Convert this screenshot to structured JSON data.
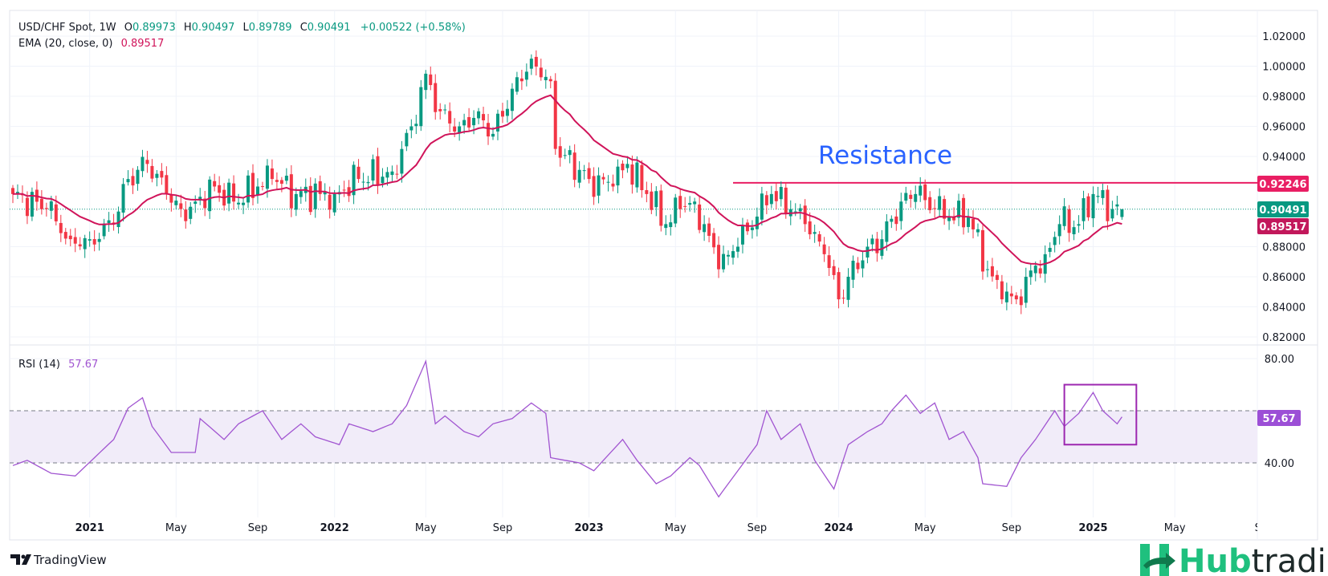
{
  "legend": {
    "symbol": "USD/CHF Spot, 1W",
    "o_label": "O",
    "o": "0.89973",
    "h_label": "H",
    "h": "0.90497",
    "l_label": "L",
    "l": "0.89789",
    "c_label": "C",
    "c": "0.90491",
    "change": "+0.00522 (+0.58%)",
    "ema_label": "EMA (20, close, 0)",
    "ema_value": "0.89517",
    "rsi_label": "RSI (14)",
    "rsi_value": "57.67"
  },
  "annotation": {
    "resistance_text": "Resistance"
  },
  "price_tags": {
    "resistance": "0.92246",
    "last": "0.90491",
    "ema": "0.89517",
    "rsi": "57.67"
  },
  "branding": {
    "tradingview": "TradingView",
    "hub": "Hub",
    "trading": "trading"
  },
  "colors": {
    "up": "#089981",
    "down": "#f23645",
    "ema": "#d0145a",
    "resistance": "#e91e63",
    "rsi": "#a155d1",
    "annotation": "#2962ff",
    "brand": "#1fc07e"
  },
  "chart_data": [
    {
      "type": "candlestick",
      "title": "USD/CHF Spot, 1W",
      "ylim": [
        0.82,
        1.02
      ],
      "y_ticks": [
        "1.02000",
        "1.00000",
        "0.98000",
        "0.96000",
        "0.94000",
        "0.88000",
        "0.86000",
        "0.84000",
        "0.82000"
      ],
      "x_ticks": [
        {
          "label": "2021",
          "week": 16,
          "bold": true
        },
        {
          "label": "May",
          "week": 34
        },
        {
          "label": "Sep",
          "week": 51
        },
        {
          "label": "2022",
          "week": 67,
          "bold": true
        },
        {
          "label": "May",
          "week": 86
        },
        {
          "label": "Sep",
          "week": 102
        },
        {
          "label": "2023",
          "week": 120,
          "bold": true
        },
        {
          "label": "May",
          "week": 138
        },
        {
          "label": "Sep",
          "week": 155
        },
        {
          "label": "2024",
          "week": 172,
          "bold": true
        },
        {
          "label": "May",
          "week": 190
        },
        {
          "label": "Sep",
          "week": 208
        },
        {
          "label": "2025",
          "week": 225,
          "bold": true
        },
        {
          "label": "May",
          "week": 242
        },
        {
          "label": "Se",
          "week": 260
        }
      ],
      "weeks": 232,
      "close_keypoints": [
        [
          0,
          0.915
        ],
        [
          7,
          0.905
        ],
        [
          12,
          0.885
        ],
        [
          16,
          0.885
        ],
        [
          21,
          0.895
        ],
        [
          24,
          0.925
        ],
        [
          28,
          0.935
        ],
        [
          32,
          0.915
        ],
        [
          36,
          0.897
        ],
        [
          38,
          0.91
        ],
        [
          42,
          0.92
        ],
        [
          46,
          0.91
        ],
        [
          51,
          0.92
        ],
        [
          54,
          0.925
        ],
        [
          59,
          0.915
        ],
        [
          64,
          0.915
        ],
        [
          67,
          0.915
        ],
        [
          72,
          0.925
        ],
        [
          79,
          0.93
        ],
        [
          83,
          0.96
        ],
        [
          86,
          0.995
        ],
        [
          89,
          0.97
        ],
        [
          93,
          0.96
        ],
        [
          97,
          0.97
        ],
        [
          100,
          0.955
        ],
        [
          104,
          0.985
        ],
        [
          108,
          1.005
        ],
        [
          112,
          0.99
        ],
        [
          113,
          0.945
        ],
        [
          120,
          0.925
        ],
        [
          125,
          0.92
        ],
        [
          128,
          0.935
        ],
        [
          132,
          0.915
        ],
        [
          136,
          0.895
        ],
        [
          139,
          0.905
        ],
        [
          142,
          0.91
        ],
        [
          144,
          0.895
        ],
        [
          147,
          0.865
        ],
        [
          151,
          0.88
        ],
        [
          155,
          0.9
        ],
        [
          158,
          0.915
        ],
        [
          162,
          0.905
        ],
        [
          165,
          0.895
        ],
        [
          169,
          0.875
        ],
        [
          172,
          0.845
        ],
        [
          174,
          0.86
        ],
        [
          178,
          0.88
        ],
        [
          181,
          0.885
        ],
        [
          185,
          0.91
        ],
        [
          188,
          0.915
        ],
        [
          192,
          0.905
        ],
        [
          195,
          0.9
        ],
        [
          199,
          0.9
        ],
        [
          203,
          0.865
        ],
        [
          206,
          0.845
        ],
        [
          209,
          0.845
        ],
        [
          211,
          0.86
        ],
        [
          215,
          0.875
        ],
        [
          218,
          0.895
        ],
        [
          222,
          0.895
        ],
        [
          225,
          0.915
        ],
        [
          229,
          0.905
        ],
        [
          231,
          0.90491
        ]
      ],
      "last_candle": {
        "open": 0.89973,
        "high": 0.90497,
        "low": 0.89789,
        "close": 0.90491
      },
      "ema_period": 20,
      "ema_last": 0.89517,
      "resistance": {
        "value": 0.92246,
        "from_week": 150,
        "label": "Resistance"
      },
      "last_price": 0.90491
    },
    {
      "type": "line",
      "title": "RSI (14)",
      "ylim": [
        20,
        85
      ],
      "y_ticks": [
        "80.00",
        "40.00"
      ],
      "bands": [
        40,
        60
      ],
      "keypoints": [
        [
          0,
          39
        ],
        [
          3,
          41
        ],
        [
          8,
          36
        ],
        [
          13,
          35
        ],
        [
          17,
          42
        ],
        [
          21,
          49
        ],
        [
          24,
          61
        ],
        [
          27,
          65
        ],
        [
          29,
          54
        ],
        [
          33,
          44
        ],
        [
          38,
          44
        ],
        [
          39,
          57
        ],
        [
          44,
          49
        ],
        [
          47,
          55
        ],
        [
          52,
          60
        ],
        [
          56,
          49
        ],
        [
          60,
          55
        ],
        [
          63,
          50
        ],
        [
          68,
          47
        ],
        [
          70,
          55
        ],
        [
          75,
          52
        ],
        [
          79,
          55
        ],
        [
          82,
          62
        ],
        [
          86,
          79
        ],
        [
          88,
          55
        ],
        [
          90,
          58
        ],
        [
          94,
          52
        ],
        [
          97,
          50
        ],
        [
          100,
          55
        ],
        [
          104,
          57
        ],
        [
          108,
          63
        ],
        [
          111,
          59
        ],
        [
          112,
          42
        ],
        [
          118,
          40
        ],
        [
          121,
          37
        ],
        [
          127,
          49
        ],
        [
          130,
          41
        ],
        [
          134,
          32
        ],
        [
          137,
          35
        ],
        [
          141,
          42
        ],
        [
          143,
          39
        ],
        [
          147,
          27
        ],
        [
          151,
          37
        ],
        [
          155,
          47
        ],
        [
          157,
          60
        ],
        [
          160,
          49
        ],
        [
          164,
          55
        ],
        [
          167,
          41
        ],
        [
          171,
          30
        ],
        [
          174,
          47
        ],
        [
          178,
          52
        ],
        [
          181,
          55
        ],
        [
          183,
          60
        ],
        [
          186,
          66
        ],
        [
          189,
          59
        ],
        [
          192,
          63
        ],
        [
          195,
          49
        ],
        [
          198,
          52
        ],
        [
          201,
          42
        ],
        [
          202,
          32
        ],
        [
          207,
          31
        ],
        [
          210,
          42
        ],
        [
          213,
          49
        ],
        [
          217,
          60
        ],
        [
          219,
          54
        ],
        [
          222,
          59
        ],
        [
          225,
          67
        ],
        [
          227,
          60
        ],
        [
          230,
          55
        ],
        [
          231,
          57.67
        ]
      ],
      "last_value": 57.67,
      "highlight_box": {
        "from_week": 219,
        "to_week": 234,
        "from_value": 47,
        "to_value": 70
      }
    }
  ]
}
